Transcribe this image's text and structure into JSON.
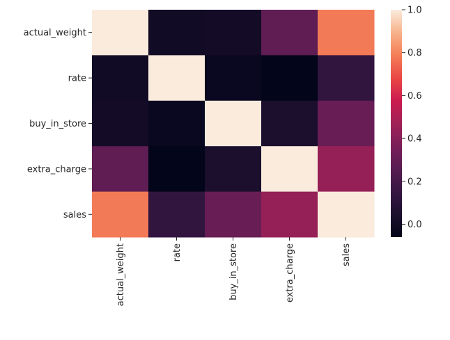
{
  "chart_data": {
    "type": "heatmap",
    "title": "",
    "xlabel": "",
    "ylabel": "",
    "x_categories": [
      "actual_weight",
      "rate",
      "buy_in_store",
      "extra_charge",
      "sales"
    ],
    "y_categories": [
      "actual_weight",
      "rate",
      "buy_in_store",
      "extra_charge",
      "sales"
    ],
    "values": [
      [
        1.0,
        0.0,
        0.01,
        0.28,
        0.78
      ],
      [
        0.0,
        1.0,
        -0.03,
        -0.06,
        0.13
      ],
      [
        0.01,
        -0.03,
        1.0,
        0.04,
        0.31
      ],
      [
        0.28,
        -0.06,
        0.04,
        1.0,
        0.44
      ],
      [
        0.78,
        0.13,
        0.31,
        0.44,
        1.0
      ]
    ],
    "colorbar": {
      "vmin": -0.06,
      "vmax": 1.0,
      "ticks": [
        0.0,
        0.2,
        0.4,
        0.6,
        0.8,
        1.0
      ],
      "tick_labels": [
        "0.0",
        "0.2",
        "0.4",
        "0.6",
        "0.8",
        "1.0"
      ],
      "colormap": "rocket"
    }
  }
}
